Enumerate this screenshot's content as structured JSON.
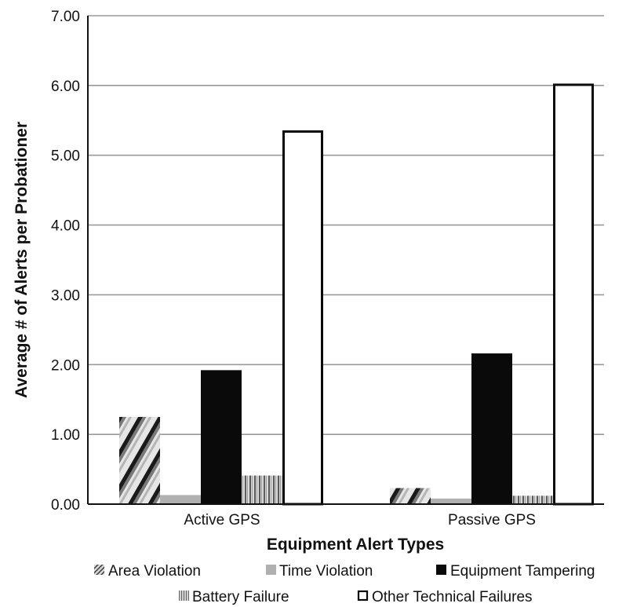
{
  "chart_data": {
    "type": "bar",
    "categories": [
      "Active GPS",
      "Passive GPS"
    ],
    "series": [
      {
        "name": "Area Violation",
        "values": [
          1.25,
          0.23
        ],
        "pattern": "diagonal-stripe"
      },
      {
        "name": "Time Violation",
        "values": [
          0.13,
          0.08
        ],
        "pattern": "solid-gray"
      },
      {
        "name": "Equipment Tampering",
        "values": [
          1.92,
          2.16
        ],
        "pattern": "solid-black"
      },
      {
        "name": "Battery Failure",
        "values": [
          0.41,
          0.12
        ],
        "pattern": "vertical-stripe"
      },
      {
        "name": "Other Technical Failures",
        "values": [
          5.34,
          6.01
        ],
        "pattern": "white-outline"
      }
    ],
    "ylim": [
      0,
      7
    ],
    "yticks": [
      "0.00",
      "1.00",
      "2.00",
      "3.00",
      "4.00",
      "5.00",
      "6.00",
      "7.00"
    ],
    "xlabel": "Equipment Alert Types",
    "ylabel": "Average # of Alerts per Probationer",
    "grid": true,
    "legend_position": "bottom",
    "colors": {
      "black": "#0a0a0a",
      "gray": "#b0b0b0",
      "grid": "#9a9a9a",
      "white": "#ffffff"
    }
  }
}
